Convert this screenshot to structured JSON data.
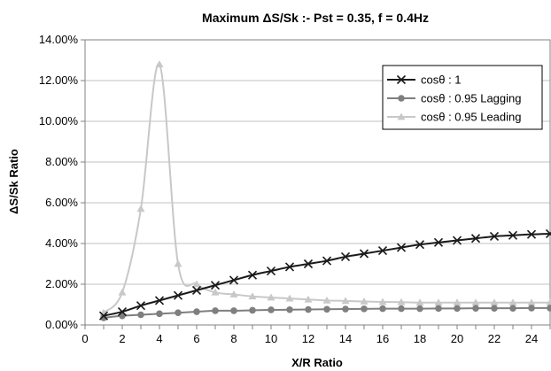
{
  "chart_data": {
    "type": "line",
    "title": "Maximum ΔS/Sk :- Pst = 0.35, f = 0.4Hz",
    "xlabel": "X/R Ratio",
    "ylabel": "ΔS/Sk Ratio",
    "xlim": [
      0,
      25
    ],
    "ylim": [
      0,
      14
    ],
    "xticks": [
      0,
      2,
      4,
      6,
      8,
      10,
      12,
      14,
      16,
      18,
      20,
      22,
      24
    ],
    "xtick_labels": [
      "0",
      "2",
      "4",
      "6",
      "8",
      "10",
      "12",
      "14",
      "16",
      "18",
      "20",
      "22",
      "24"
    ],
    "yticks": [
      0,
      2,
      4,
      6,
      8,
      10,
      12,
      14
    ],
    "ytick_labels": [
      "0.00%",
      "2.00%",
      "4.00%",
      "6.00%",
      "8.00%",
      "10.00%",
      "12.00%",
      "14.00%"
    ],
    "grid": "horizontal",
    "legend_position": "top-right",
    "x": [
      1,
      2,
      3,
      4,
      5,
      6,
      7,
      8,
      9,
      10,
      11,
      12,
      13,
      14,
      15,
      16,
      17,
      18,
      19,
      20,
      21,
      22,
      23,
      24,
      25
    ],
    "series": [
      {
        "name": "cosθ : 1",
        "color": "#1a1a1a",
        "marker": "x",
        "values": [
          0.45,
          0.65,
          0.95,
          1.2,
          1.45,
          1.7,
          1.95,
          2.2,
          2.45,
          2.65,
          2.85,
          3.0,
          3.15,
          3.35,
          3.5,
          3.65,
          3.8,
          3.95,
          4.05,
          4.15,
          4.25,
          4.35,
          4.4,
          4.45,
          4.48
        ]
      },
      {
        "name": "cosθ : 0.95 Lagging",
        "color": "#7f7f7f",
        "marker": "circle",
        "values": [
          0.35,
          0.45,
          0.5,
          0.55,
          0.6,
          0.65,
          0.7,
          0.7,
          0.72,
          0.74,
          0.75,
          0.76,
          0.77,
          0.78,
          0.79,
          0.8,
          0.8,
          0.8,
          0.81,
          0.81,
          0.82,
          0.82,
          0.82,
          0.83,
          0.83
        ]
      },
      {
        "name": "cosθ : 0.95 Leading",
        "color": "#c8c8c8",
        "marker": "triangle",
        "values": [
          0.6,
          1.6,
          5.7,
          12.8,
          3.0,
          2.0,
          1.6,
          1.5,
          1.4,
          1.35,
          1.3,
          1.25,
          1.2,
          1.18,
          1.15,
          1.13,
          1.12,
          1.1,
          1.1,
          1.1,
          1.1,
          1.1,
          1.1,
          1.1,
          1.1
        ]
      }
    ]
  }
}
